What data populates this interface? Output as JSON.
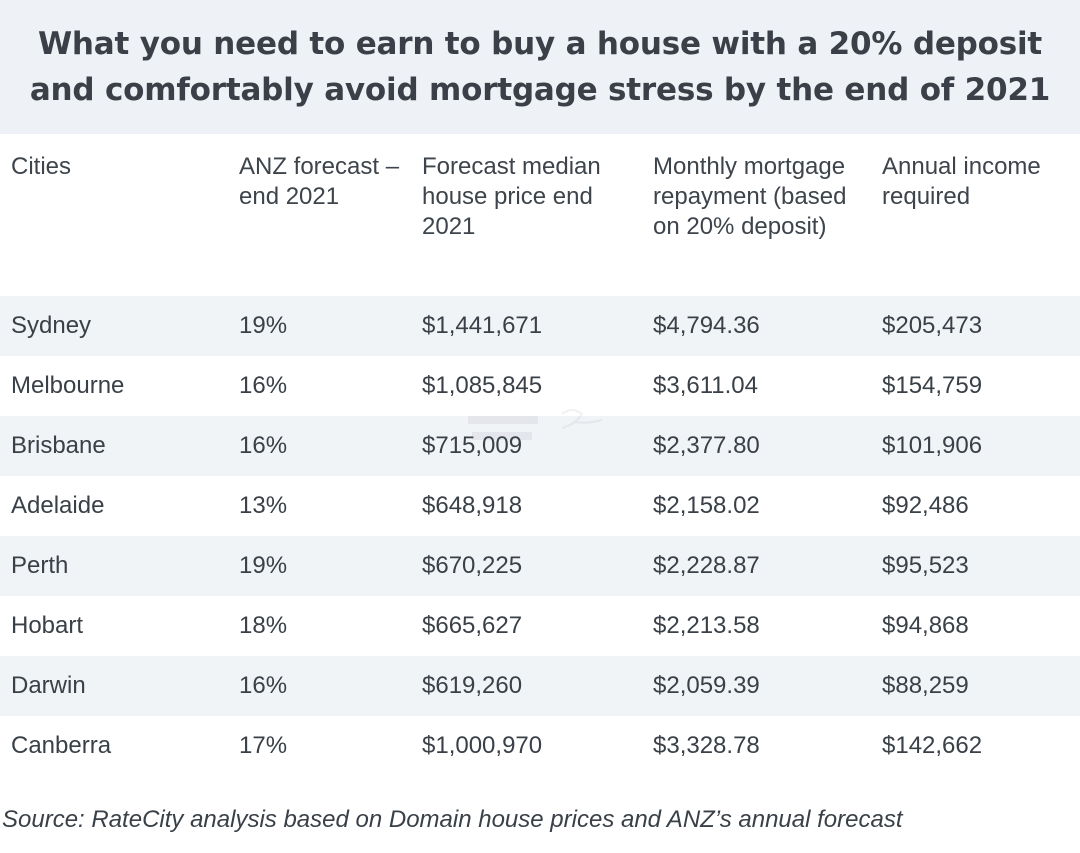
{
  "title": "What you need to earn to buy a house with a 20% deposit and comfortably avoid mortgage stress by the end of 2021",
  "table": {
    "headers": [
      "Cities",
      "ANZ forecast – end 2021",
      "Forecast median house price end 2021",
      "Monthly mortgage repayment (based on 20% deposit)",
      "Annual income required"
    ],
    "rows": [
      [
        "Sydney",
        "19%",
        "$1,441,671",
        "$4,794.36",
        "$205,473"
      ],
      [
        "Melbourne",
        "16%",
        "$1,085,845",
        "$3,611.04",
        "$154,759"
      ],
      [
        "Brisbane",
        "16%",
        "$715,009",
        "$2,377.80",
        "$101,906"
      ],
      [
        "Adelaide",
        "13%",
        "$648,918",
        "$2,158.02",
        "$92,486"
      ],
      [
        "Perth",
        "19%",
        "$670,225",
        "$2,228.87",
        "$95,523"
      ],
      [
        "Hobart",
        "18%",
        "$665,627",
        "$2,213.58",
        "$94,868"
      ],
      [
        "Darwin",
        "16%",
        "$619,260",
        "$2,059.39",
        "$88,259"
      ],
      [
        "Canberra",
        "17%",
        "$1,000,970",
        "$3,328.78",
        "$142,662"
      ]
    ]
  },
  "source": "Source: RateCity analysis based on Domain house prices and ANZ’s annual forecast",
  "colors": {
    "header_band": "#eef1f5",
    "stripe": "#f1f4f7",
    "text": "#3a4047"
  }
}
